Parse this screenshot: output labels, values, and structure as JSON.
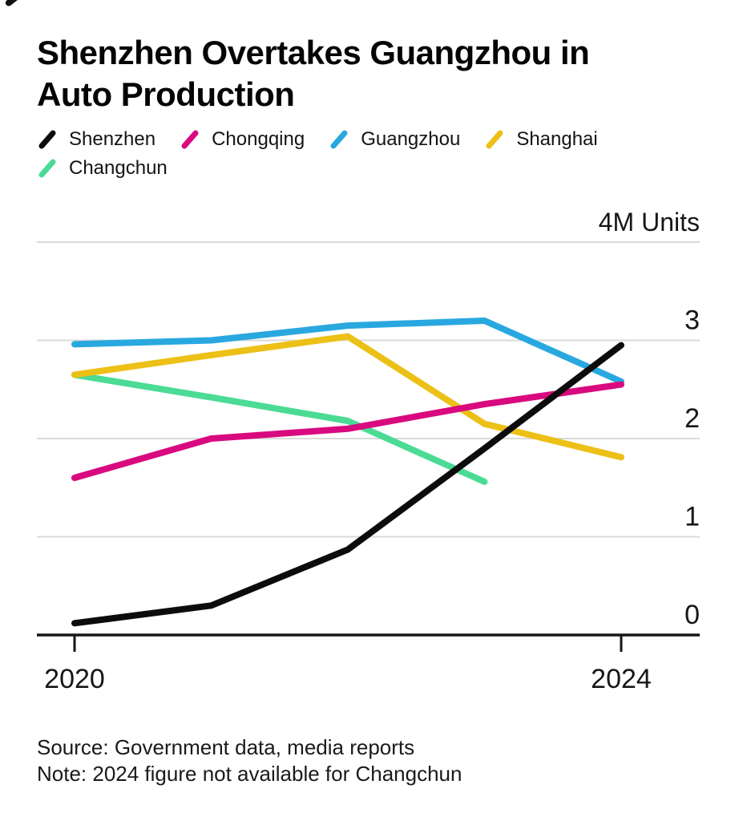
{
  "page": {
    "background": "#ffffff"
  },
  "title": {
    "line1": "Shenzhen Overtakes Guangzhou in",
    "line2": "Auto Production"
  },
  "legend": {
    "rows": [
      [
        {
          "label": "Shenzhen",
          "color": "#0c0c0c"
        },
        {
          "label": "Chongqing",
          "color": "#d9097f"
        },
        {
          "label": "Guangzhou",
          "color": "#29a8e0"
        },
        {
          "label": "Shanghai",
          "color": "#ecc016"
        }
      ],
      [
        {
          "label": "Changchun",
          "color": "#4bdb95"
        }
      ]
    ]
  },
  "chart_data": {
    "type": "line",
    "x": [
      2020,
      2021,
      2022,
      2023,
      2024
    ],
    "series": [
      {
        "name": "Shenzhen",
        "color": "#0c0c0c",
        "values": [
          0.12,
          0.3,
          0.87,
          1.9,
          2.95
        ]
      },
      {
        "name": "Chongqing",
        "color": "#d9097f",
        "values": [
          1.6,
          2.0,
          2.1,
          2.35,
          2.55
        ]
      },
      {
        "name": "Guangzhou",
        "color": "#29a8e0",
        "values": [
          2.96,
          3.0,
          3.15,
          3.2,
          2.58
        ]
      },
      {
        "name": "Shanghai",
        "color": "#ecc016",
        "values": [
          2.65,
          2.85,
          3.04,
          2.15,
          1.81
        ]
      },
      {
        "name": "Changchun",
        "color": "#4bdb95",
        "values": [
          2.65,
          2.42,
          2.18,
          1.56,
          null
        ]
      }
    ],
    "ylim": [
      0,
      4
    ],
    "gridlines_at": [
      1,
      2,
      3,
      4
    ],
    "y_labels": [
      {
        "value": 4,
        "label": "4M Units"
      },
      {
        "value": 3,
        "label": "3"
      },
      {
        "value": 2,
        "label": "2"
      },
      {
        "value": 1,
        "label": "1"
      },
      {
        "value": 0,
        "label": "0"
      }
    ],
    "x_axis": {
      "ticks": [
        2020,
        2024
      ],
      "labels": [
        "2020",
        "2024"
      ]
    },
    "grid": true,
    "legend_position": "top",
    "note": "2024 value missing for Changchun series"
  },
  "footer": {
    "source": "Source: Government data, media reports",
    "note": "Note: 2024 figure not available for Changchun"
  },
  "style": {
    "grid_color": "#dadada",
    "axis_color": "#161616",
    "text_color": "#161616",
    "line_width": 8
  }
}
